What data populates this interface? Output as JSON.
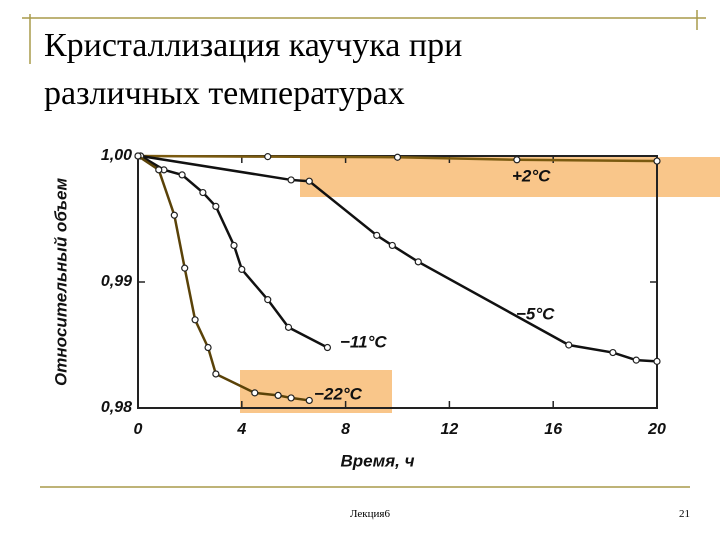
{
  "header": {
    "title": "Кристаллизация каучука при различных температурах"
  },
  "footer": {
    "lecture": "Лекция6",
    "page": "21"
  },
  "chart_data": {
    "type": "line",
    "x_label": "Время, ч",
    "y_label": "Относительный объем",
    "xlim": [
      0,
      20
    ],
    "xticks": [
      0,
      4,
      8,
      12,
      16,
      20
    ],
    "ylim": [
      0.98,
      1.0
    ],
    "yticks": [
      {
        "value": 0.98,
        "label": "0,98"
      },
      {
        "value": 0.99,
        "label": "0,99"
      },
      {
        "value": 1.0,
        "label": "1,00"
      }
    ],
    "series": [
      {
        "name": "+2°C",
        "color": "#7a5a10",
        "x": [
          0,
          5,
          10,
          14.6,
          20
        ],
        "values": [
          1.0,
          0.99995,
          0.9999,
          0.9997,
          0.9996
        ]
      },
      {
        "name": "−5°C",
        "color": "#111111",
        "x": [
          0.1,
          5.9,
          6.6,
          9.2,
          9.8,
          10.8,
          16.6,
          18.3,
          19.2,
          20
        ],
        "values": [
          1.0,
          0.9981,
          0.998,
          0.9937,
          0.9929,
          0.9916,
          0.985,
          0.9844,
          0.9838,
          0.9837
        ]
      },
      {
        "name": "−11°C",
        "color": "#111111",
        "x": [
          0.1,
          1.0,
          1.7,
          2.5,
          3.0,
          3.7,
          4.0,
          5.0,
          5.8,
          7.3
        ],
        "values": [
          1.0,
          0.9989,
          0.9985,
          0.9971,
          0.996,
          0.9929,
          0.991,
          0.9886,
          0.9864,
          0.9848
        ]
      },
      {
        "name": "−22°C",
        "color": "#5a4208",
        "x": [
          0,
          0.8,
          1.4,
          1.8,
          2.2,
          2.7,
          3.0,
          4.5,
          5.4,
          5.9,
          6.6
        ],
        "values": [
          1.0,
          0.9989,
          0.9953,
          0.9911,
          0.987,
          0.9848,
          0.9827,
          0.9812,
          0.981,
          0.9808,
          0.9806
        ]
      }
    ]
  }
}
